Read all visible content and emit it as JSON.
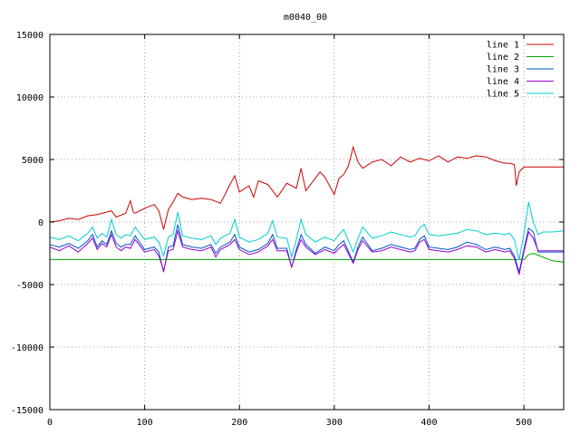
{
  "chart_data": {
    "type": "line",
    "title": "m0040_00",
    "xlabel": "",
    "ylabel": "",
    "xlim": [
      0,
      542
    ],
    "ylim": [
      -15000,
      15000
    ],
    "xticks": [
      0,
      100,
      200,
      300,
      400,
      500
    ],
    "yticks": [
      -15000,
      -10000,
      -5000,
      0,
      5000,
      10000,
      15000
    ],
    "grid": true,
    "legend_position": "top-right",
    "series": [
      {
        "name": "line 1",
        "color": "#cc0000",
        "x": [
          0,
          10,
          20,
          30,
          40,
          50,
          60,
          65,
          70,
          80,
          85,
          88,
          90,
          100,
          110,
          115,
          120,
          125,
          130,
          135,
          140,
          150,
          160,
          170,
          180,
          190,
          195,
          200,
          210,
          215,
          220,
          230,
          240,
          250,
          260,
          265,
          270,
          280,
          285,
          290,
          300,
          305,
          310,
          315,
          320,
          325,
          330,
          340,
          350,
          360,
          370,
          380,
          390,
          400,
          410,
          420,
          430,
          440,
          450,
          460,
          470,
          480,
          485,
          490,
          492,
          495,
          500,
          510,
          520,
          530,
          542
        ],
        "y": [
          0,
          100,
          300,
          200,
          500,
          600,
          800,
          900,
          400,
          700,
          1700,
          800,
          700,
          1100,
          1400,
          900,
          -600,
          1000,
          1600,
          2300,
          2000,
          1800,
          1900,
          1800,
          1500,
          3000,
          3700,
          2400,
          2900,
          2000,
          3300,
          3000,
          2000,
          3100,
          2700,
          4300,
          2500,
          3500,
          4000,
          3600,
          2200,
          3500,
          3800,
          4500,
          6000,
          4800,
          4300,
          4800,
          5000,
          4500,
          5200,
          4800,
          5100,
          4900,
          5300,
          4800,
          5200,
          5100,
          5300,
          5200,
          4900,
          4700,
          4700,
          4600,
          2900,
          4000,
          4400,
          4400,
          4400,
          4400,
          4400
        ]
      },
      {
        "name": "line 2",
        "color": "#00aa00",
        "x": [
          0,
          100,
          200,
          300,
          400,
          490,
          500,
          505,
          510,
          520,
          530,
          542
        ],
        "y": [
          -3000,
          -3000,
          -3000,
          -3000,
          -3000,
          -3000,
          -3000,
          -2600,
          -2500,
          -2800,
          -3100,
          -3200
        ]
      },
      {
        "name": "line 3",
        "color": "#0055cc",
        "x": [
          0,
          10,
          20,
          30,
          40,
          45,
          50,
          55,
          60,
          65,
          70,
          75,
          80,
          85,
          90,
          100,
          110,
          115,
          120,
          125,
          130,
          135,
          140,
          150,
          160,
          170,
          175,
          180,
          190,
          195,
          200,
          210,
          220,
          230,
          235,
          240,
          250,
          255,
          260,
          265,
          270,
          280,
          290,
          300,
          305,
          310,
          320,
          325,
          330,
          340,
          350,
          360,
          370,
          380,
          385,
          390,
          395,
          400,
          410,
          420,
          430,
          440,
          450,
          460,
          470,
          480,
          485,
          490,
          495,
          500,
          505,
          510,
          515,
          520,
          530,
          542
        ],
        "y": [
          -1800,
          -2000,
          -1700,
          -2100,
          -1500,
          -1000,
          -2000,
          -1500,
          -1800,
          -700,
          -1700,
          -2000,
          -1800,
          -1800,
          -1100,
          -2200,
          -2000,
          -2400,
          -4000,
          -2000,
          -1900,
          -200,
          -1800,
          -2000,
          -2100,
          -1800,
          -2500,
          -2000,
          -1600,
          -1000,
          -2000,
          -2400,
          -2200,
          -1700,
          -1000,
          -2100,
          -2100,
          -3600,
          -2200,
          -1000,
          -1800,
          -2500,
          -2000,
          -2300,
          -1800,
          -1500,
          -3200,
          -2000,
          -1200,
          -2300,
          -2100,
          -1800,
          -2000,
          -2200,
          -2100,
          -1400,
          -1100,
          -2000,
          -2100,
          -2200,
          -2000,
          -1600,
          -1800,
          -2200,
          -2000,
          -2200,
          -2100,
          -2700,
          -4000,
          -2200,
          -500,
          -800,
          -2400,
          -2400,
          -2400,
          -2400
        ]
      },
      {
        "name": "line 4",
        "color": "#9900cc",
        "x": [
          0,
          10,
          20,
          30,
          40,
          45,
          50,
          55,
          60,
          65,
          70,
          75,
          80,
          85,
          90,
          100,
          110,
          115,
          120,
          125,
          130,
          135,
          140,
          150,
          160,
          170,
          175,
          180,
          190,
          195,
          200,
          210,
          220,
          230,
          235,
          240,
          250,
          255,
          260,
          265,
          270,
          280,
          290,
          300,
          305,
          310,
          320,
          325,
          330,
          340,
          350,
          360,
          370,
          380,
          385,
          390,
          395,
          400,
          410,
          420,
          430,
          440,
          450,
          460,
          470,
          480,
          485,
          490,
          495,
          500,
          505,
          510,
          515,
          520,
          530,
          542
        ],
        "y": [
          -2000,
          -2300,
          -1900,
          -2400,
          -1700,
          -1300,
          -2200,
          -1700,
          -2000,
          -1000,
          -2000,
          -2300,
          -2000,
          -2100,
          -1400,
          -2400,
          -2200,
          -2700,
          -3900,
          -2300,
          -2200,
          -700,
          -2000,
          -2200,
          -2300,
          -2000,
          -2800,
          -2200,
          -1800,
          -1400,
          -2200,
          -2600,
          -2400,
          -1900,
          -1400,
          -2300,
          -2300,
          -3600,
          -2400,
          -1400,
          -2000,
          -2600,
          -2200,
          -2500,
          -2100,
          -1800,
          -3300,
          -2200,
          -1500,
          -2400,
          -2300,
          -2000,
          -2200,
          -2400,
          -2300,
          -1600,
          -1400,
          -2200,
          -2300,
          -2400,
          -2200,
          -1900,
          -2000,
          -2400,
          -2200,
          -2400,
          -2300,
          -2900,
          -4200,
          -2400,
          -800,
          -1300,
          -2300,
          -2300,
          -2300,
          -2300
        ]
      },
      {
        "name": "line 5",
        "color": "#00cccc",
        "x": [
          0,
          10,
          20,
          30,
          40,
          45,
          50,
          55,
          60,
          65,
          70,
          75,
          80,
          85,
          90,
          100,
          110,
          115,
          120,
          125,
          130,
          135,
          140,
          150,
          160,
          170,
          175,
          180,
          190,
          195,
          200,
          210,
          220,
          230,
          235,
          240,
          250,
          255,
          260,
          265,
          270,
          280,
          290,
          300,
          305,
          310,
          320,
          325,
          330,
          340,
          350,
          360,
          370,
          380,
          385,
          390,
          395,
          400,
          410,
          420,
          430,
          440,
          450,
          460,
          470,
          480,
          485,
          490,
          495,
          500,
          505,
          510,
          515,
          520,
          530,
          542
        ],
        "y": [
          -1200,
          -1400,
          -1100,
          -1500,
          -900,
          -400,
          -1300,
          -900,
          -1200,
          200,
          -1000,
          -1300,
          -1000,
          -1100,
          -400,
          -1400,
          -1200,
          -1600,
          -2700,
          -1200,
          -1000,
          800,
          -1100,
          -1300,
          -1400,
          -1100,
          -1800,
          -1300,
          -900,
          200,
          -1200,
          -1600,
          -1400,
          -900,
          100,
          -1200,
          -1300,
          -2800,
          -1400,
          200,
          -1000,
          -1600,
          -1200,
          -1500,
          -1000,
          -600,
          -2400,
          -1300,
          -400,
          -1300,
          -1100,
          -800,
          -1000,
          -1200,
          -1100,
          -500,
          -200,
          -1000,
          -1100,
          -1000,
          -900,
          -600,
          -700,
          -1000,
          -900,
          -1000,
          -900,
          -1400,
          -3000,
          -1000,
          1600,
          0,
          -1000,
          -800,
          -800,
          -700
        ]
      }
    ]
  }
}
